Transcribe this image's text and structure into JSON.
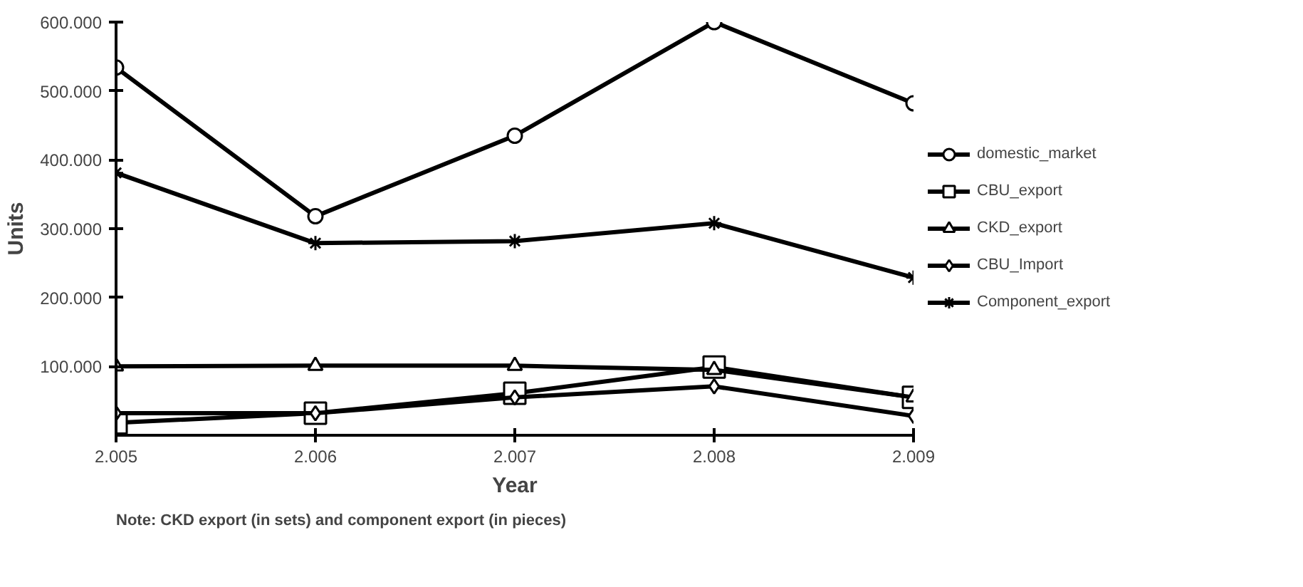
{
  "chart_data": {
    "type": "line",
    "xlabel": "Year",
    "ylabel": "Units",
    "x": [
      2005,
      2006,
      2007,
      2008,
      2009
    ],
    "xlim": [
      2005,
      2009
    ],
    "xticks": [
      {
        "value": 2005,
        "label": "2.005"
      },
      {
        "value": 2006,
        "label": "2.006"
      },
      {
        "value": 2007,
        "label": "2.007"
      },
      {
        "value": 2008,
        "label": "2.008"
      },
      {
        "value": 2009,
        "label": "2.009"
      }
    ],
    "ylim": [
      0,
      600000
    ],
    "yticks": [
      {
        "value": 100000,
        "label": "100.000"
      },
      {
        "value": 200000,
        "label": "200.000"
      },
      {
        "value": 300000,
        "label": "300.000"
      },
      {
        "value": 400000,
        "label": "400.000"
      },
      {
        "value": 500000,
        "label": "500.000"
      },
      {
        "value": 600000,
        "label": "600.000"
      }
    ],
    "series": [
      {
        "name": "domestic_market",
        "color": "#000000",
        "marker": "circle",
        "values": [
          534000,
          318000,
          435000,
          600000,
          482000
        ]
      },
      {
        "name": "CBU_export",
        "color": "#000000",
        "marker": "square",
        "values": [
          18000,
          32000,
          61000,
          99000,
          55000
        ]
      },
      {
        "name": "CKD_export",
        "color": "#000000",
        "marker": "triangle",
        "values": [
          100000,
          101000,
          101000,
          95000,
          55000
        ]
      },
      {
        "name": "CBU_Import",
        "color": "#000000",
        "marker": "diamond",
        "values": [
          32000,
          32000,
          55000,
          71000,
          28000
        ]
      },
      {
        "name": "Component_export",
        "color": "#000000",
        "marker": "cross",
        "values": [
          381000,
          279000,
          282000,
          308000,
          229000
        ]
      }
    ],
    "grid": false,
    "legend": "right",
    "line_style": "solid",
    "annotations": [
      "Note: CKD export (in sets) and component export (in pieces)"
    ]
  }
}
